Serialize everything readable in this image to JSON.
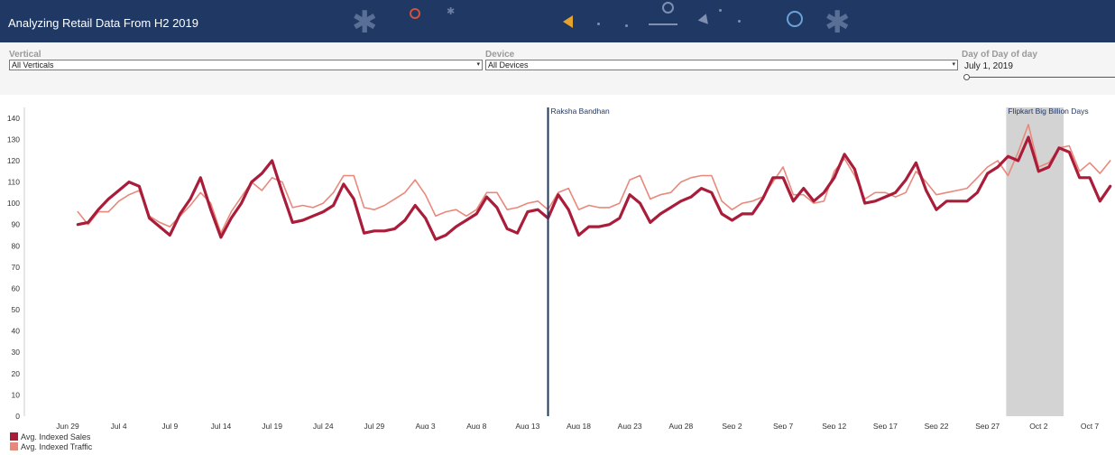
{
  "header": {
    "title": "Analyzing Retail Data From H2 2019"
  },
  "filters": {
    "vertical": {
      "label": "Vertical",
      "value": "All Verticals"
    },
    "device": {
      "label": "Device",
      "value": "All Devices"
    },
    "day": {
      "label": "Day of Day of day",
      "value": "July 1, 2019",
      "slider_fraction": 0.0
    }
  },
  "colors": {
    "header_bg": "#1f3864",
    "sales": "#a91d3a",
    "traffic": "#e8897c",
    "event_line": "#1f3864",
    "event_band": "#d3d3d3"
  },
  "chart_data": {
    "type": "line",
    "title": "",
    "xlabel": "",
    "ylabel": "",
    "ylim": [
      0,
      145
    ],
    "yticks": [
      0,
      10,
      20,
      30,
      40,
      50,
      60,
      70,
      80,
      90,
      100,
      110,
      120,
      130,
      140
    ],
    "x_start": "2019-06-30",
    "x_ticks": [
      {
        "label": "Jun 29",
        "date": "2019-06-29"
      },
      {
        "label": "Jul 4",
        "date": "2019-07-04"
      },
      {
        "label": "Jul 9",
        "date": "2019-07-09"
      },
      {
        "label": "Jul 14",
        "date": "2019-07-14"
      },
      {
        "label": "Jul 19",
        "date": "2019-07-19"
      },
      {
        "label": "Jul 24",
        "date": "2019-07-24"
      },
      {
        "label": "Jul 29",
        "date": "2019-07-29"
      },
      {
        "label": "Aug 3",
        "date": "2019-08-03"
      },
      {
        "label": "Aug 8",
        "date": "2019-08-08"
      },
      {
        "label": "Aug 13",
        "date": "2019-08-13"
      },
      {
        "label": "Aug 18",
        "date": "2019-08-18"
      },
      {
        "label": "Aug 23",
        "date": "2019-08-23"
      },
      {
        "label": "Aug 28",
        "date": "2019-08-28"
      },
      {
        "label": "Sep 2",
        "date": "2019-09-02"
      },
      {
        "label": "Sep 7",
        "date": "2019-09-07"
      },
      {
        "label": "Sep 12",
        "date": "2019-09-12"
      },
      {
        "label": "Sep 17",
        "date": "2019-09-17"
      },
      {
        "label": "Sep 22",
        "date": "2019-09-22"
      },
      {
        "label": "Sep 27",
        "date": "2019-09-27"
      },
      {
        "label": "Oct 2",
        "date": "2019-10-02"
      },
      {
        "label": "Oct 7",
        "date": "2019-10-07"
      }
    ],
    "series": [
      {
        "name": "Avg. Indexed Sales",
        "color": "#a91d3a",
        "values": [
          90,
          91,
          97,
          102,
          106,
          110,
          108,
          93,
          89,
          85,
          95,
          102,
          112,
          97,
          84,
          93,
          100,
          110,
          114,
          120,
          105,
          91,
          92,
          94,
          96,
          99,
          109,
          102,
          86,
          87,
          87,
          88,
          92,
          99,
          93,
          83,
          85,
          89,
          92,
          95,
          103,
          98,
          88,
          86,
          96,
          97,
          93,
          104,
          97,
          85,
          89,
          89,
          90,
          93,
          104,
          100,
          91,
          95,
          98,
          101,
          103,
          107,
          105,
          95,
          92,
          95,
          95,
          102,
          112,
          112,
          101,
          107,
          101,
          105,
          112,
          123,
          116,
          100,
          101,
          103,
          105,
          111,
          119,
          106,
          97,
          101,
          101,
          101,
          105,
          114,
          117,
          122,
          120,
          131,
          115,
          117,
          126,
          124,
          112,
          112,
          101,
          108
        ]
      },
      {
        "name": "Avg. Indexed Traffic",
        "color": "#e8897c",
        "values": [
          96,
          90,
          96,
          96,
          101,
          104,
          106,
          94,
          91,
          89,
          94,
          99,
          105,
          100,
          86,
          96,
          103,
          110,
          106,
          112,
          110,
          98,
          99,
          98,
          100,
          105,
          113,
          113,
          98,
          97,
          99,
          102,
          105,
          111,
          104,
          94,
          96,
          97,
          94,
          97,
          105,
          105,
          97,
          98,
          100,
          101,
          97,
          105,
          107,
          97,
          99,
          98,
          98,
          100,
          111,
          113,
          102,
          104,
          105,
          110,
          112,
          113,
          113,
          101,
          97,
          100,
          101,
          103,
          110,
          117,
          104,
          104,
          100,
          101,
          115,
          121,
          113,
          102,
          105,
          105,
          103,
          105,
          115,
          110,
          104,
          105,
          106,
          107,
          112,
          117,
          120,
          113,
          124,
          137,
          117,
          119,
          126,
          127,
          115,
          119,
          114,
          120
        ]
      }
    ],
    "annotations": [
      {
        "label": "Raksha Bandhan",
        "date": "2019-08-15",
        "kind": "line"
      },
      {
        "label": "Flipkart Big Billion Days",
        "start": "2019-09-29",
        "end": "2019-10-04",
        "kind": "band"
      }
    ],
    "grid": false,
    "legend_position": "bottom-left"
  }
}
